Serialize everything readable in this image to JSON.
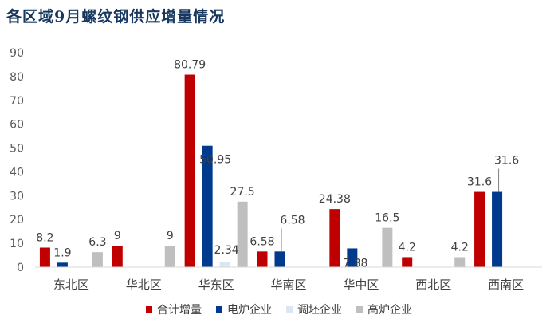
{
  "title": "各区域9月螺纹钢供应增量情况",
  "chart_data": {
    "type": "bar",
    "title": "各区域9月螺纹钢供应增量情况",
    "categories": [
      "东北区",
      "华北区",
      "华东区",
      "华南区",
      "华中区",
      "西北区",
      "西南区"
    ],
    "series": [
      {
        "name": "合计增量",
        "color": "#c00000",
        "values": [
          8.2,
          9,
          80.79,
          6.58,
          24.38,
          4.2,
          31.6
        ]
      },
      {
        "name": "电炉企业",
        "color": "#003a8c",
        "values": [
          1.9,
          null,
          50.95,
          6.58,
          7.88,
          null,
          31.6
        ]
      },
      {
        "name": "调坯企业",
        "color": "#dce6f2",
        "values": [
          null,
          null,
          2.34,
          null,
          null,
          null,
          null
        ]
      },
      {
        "name": "高炉企业",
        "color": "#bfbfbf",
        "values": [
          6.3,
          9,
          27.5,
          null,
          16.5,
          4.2,
          null
        ]
      }
    ],
    "value_labels": [
      [
        "8.2",
        "9",
        "80.79",
        "6.58",
        "24.38",
        "4.2",
        "31.6"
      ],
      [
        "1.9",
        "",
        "50.95",
        "6.58",
        "7.88",
        "",
        "31.6"
      ],
      [
        "",
        "",
        "2.34",
        "",
        "",
        "",
        ""
      ],
      [
        "6.3",
        "9",
        "27.5",
        "",
        "16.5",
        "4.2",
        ""
      ]
    ],
    "ylim": [
      0,
      90
    ],
    "yticks": [
      0,
      10,
      20,
      30,
      40,
      50,
      60,
      70,
      80,
      90
    ],
    "ytick_labels": [
      "0",
      "10",
      "20",
      "30",
      "40",
      "50",
      "60",
      "70",
      "80",
      "90"
    ],
    "xlabel": "",
    "ylabel": "",
    "grid": false,
    "legend_position": "bottom"
  }
}
